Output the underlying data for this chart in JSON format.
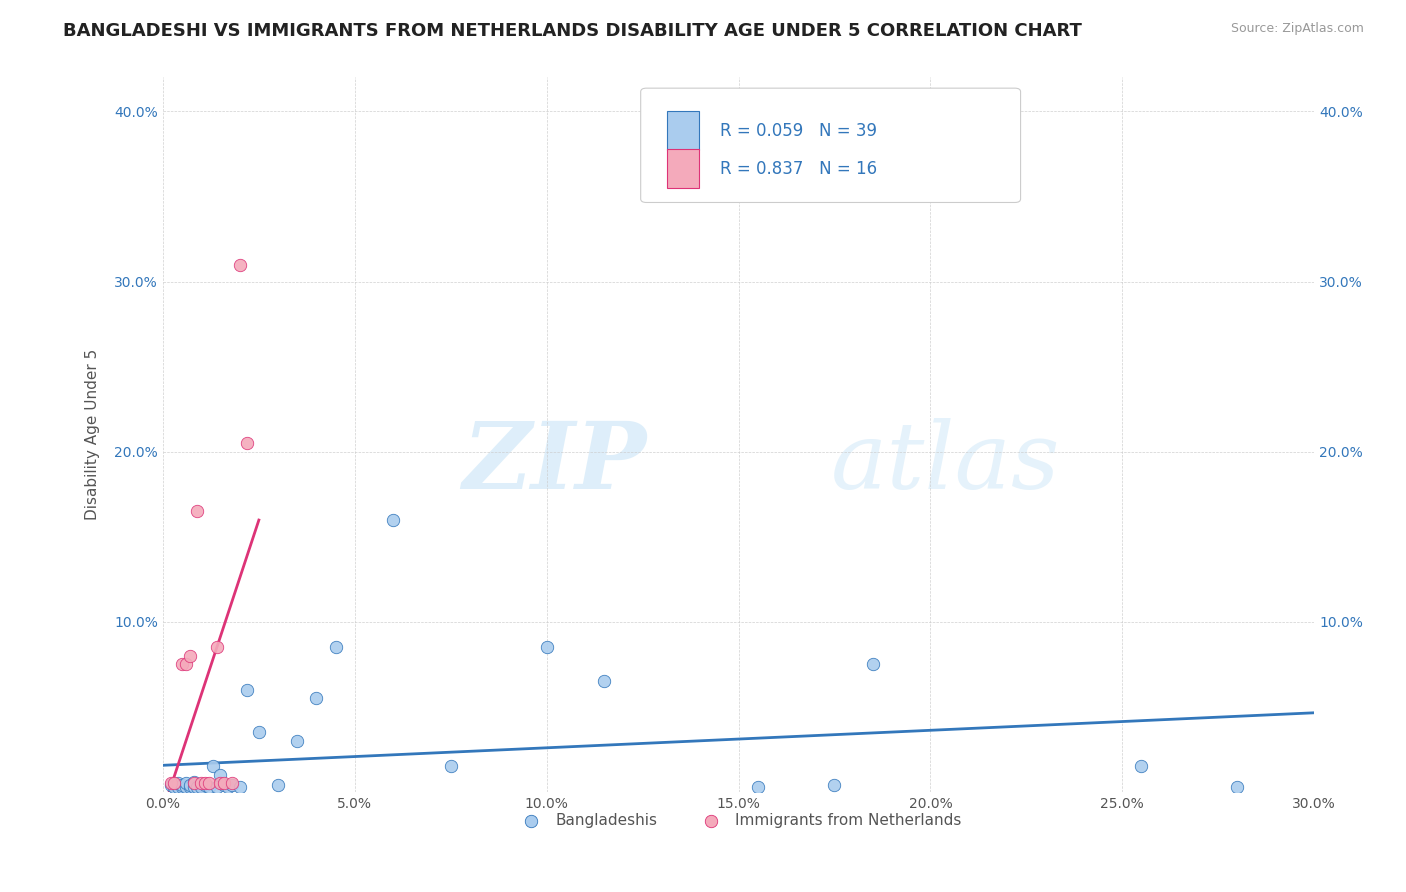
{
  "title": "BANGLADESHI VS IMMIGRANTS FROM NETHERLANDS DISABILITY AGE UNDER 5 CORRELATION CHART",
  "source": "Source: ZipAtlas.com",
  "ylabel": "Disability Age Under 5",
  "xlim": [
    0.0,
    0.3
  ],
  "ylim": [
    0.0,
    0.42
  ],
  "x_ticks": [
    0.0,
    0.05,
    0.1,
    0.15,
    0.2,
    0.25,
    0.3
  ],
  "y_ticks": [
    0.0,
    0.1,
    0.2,
    0.3,
    0.4
  ],
  "x_tick_labels": [
    "0.0%",
    "5.0%",
    "10.0%",
    "15.0%",
    "20.0%",
    "25.0%",
    "30.0%"
  ],
  "y_tick_labels": [
    "",
    "10.0%",
    "20.0%",
    "30.0%",
    "40.0%"
  ],
  "legend_label1": "Bangladeshis",
  "legend_label2": "Immigrants from Netherlands",
  "R1": "0.059",
  "N1": "39",
  "R2": "0.837",
  "N2": "16",
  "color1": "#aaccee",
  "color2": "#f4aabb",
  "line_color1": "#3377bb",
  "line_color2": "#dd3377",
  "watermark_zip": "ZIP",
  "watermark_atlas": "atlas",
  "title_fontsize": 13,
  "label_fontsize": 11,
  "tick_fontsize": 10,
  "blue_scatter_x": [
    0.002,
    0.003,
    0.004,
    0.004,
    0.005,
    0.005,
    0.006,
    0.006,
    0.007,
    0.007,
    0.008,
    0.008,
    0.009,
    0.01,
    0.01,
    0.011,
    0.012,
    0.013,
    0.014,
    0.015,
    0.016,
    0.017,
    0.018,
    0.02,
    0.022,
    0.025,
    0.03,
    0.035,
    0.04,
    0.045,
    0.06,
    0.075,
    0.1,
    0.115,
    0.155,
    0.175,
    0.185,
    0.255,
    0.28
  ],
  "blue_scatter_y": [
    0.004,
    0.003,
    0.003,
    0.005,
    0.003,
    0.004,
    0.003,
    0.005,
    0.003,
    0.004,
    0.003,
    0.006,
    0.003,
    0.004,
    0.003,
    0.004,
    0.003,
    0.015,
    0.003,
    0.01,
    0.004,
    0.003,
    0.004,
    0.003,
    0.06,
    0.035,
    0.004,
    0.03,
    0.055,
    0.085,
    0.16,
    0.015,
    0.085,
    0.065,
    0.003,
    0.004,
    0.075,
    0.015,
    0.003
  ],
  "pink_scatter_x": [
    0.002,
    0.003,
    0.005,
    0.006,
    0.007,
    0.008,
    0.009,
    0.01,
    0.011,
    0.012,
    0.014,
    0.015,
    0.016,
    0.018,
    0.02,
    0.022
  ],
  "pink_scatter_y": [
    0.005,
    0.005,
    0.075,
    0.075,
    0.08,
    0.005,
    0.165,
    0.005,
    0.005,
    0.005,
    0.085,
    0.005,
    0.005,
    0.005,
    0.31,
    0.205
  ]
}
